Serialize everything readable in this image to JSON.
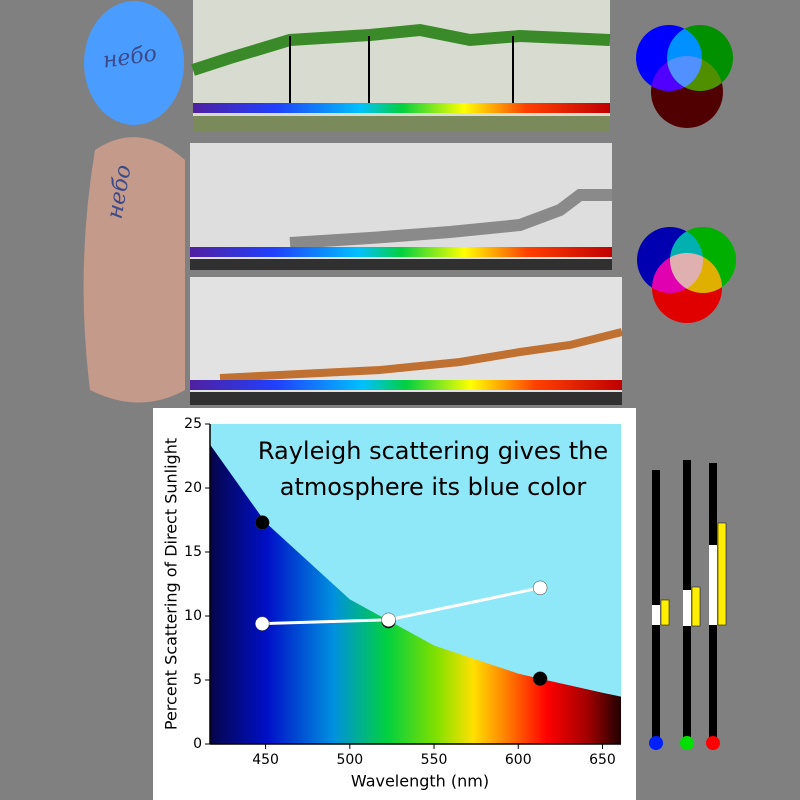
{
  "notes": [
    {
      "label": "небо"
    },
    {
      "label": "небо"
    }
  ],
  "chart_data": {
    "type": "scatter",
    "title": [
      "Rayleigh scattering gives the",
      "atmosphere its blue color"
    ],
    "x_label": "Wavelength (nm)",
    "y_label": "Percent Scattering of Direct Sunlight",
    "xlim": [
      417,
      661
    ],
    "ylim": [
      0,
      25
    ],
    "xticks": [
      450,
      500,
      550,
      600,
      650
    ],
    "yticks": [
      0,
      5,
      10,
      15,
      20,
      25
    ],
    "curve": {
      "color": "#8ee8f8",
      "x": [
        417,
        450,
        500,
        550,
        600,
        613,
        650,
        661
      ],
      "values": [
        23.4,
        17.3,
        11.3,
        7.7,
        5.5,
        5.1,
        4.0,
        3.7
      ]
    },
    "series": [
      {
        "color": "#000000",
        "line": false,
        "x": [
          448,
          523,
          613
        ],
        "values": [
          17.3,
          9.6,
          5.1
        ]
      },
      {
        "color": "#ffffff",
        "line": true,
        "x": [
          448,
          523,
          613
        ],
        "values": [
          9.4,
          9.7,
          12.2
        ]
      }
    ]
  }
}
